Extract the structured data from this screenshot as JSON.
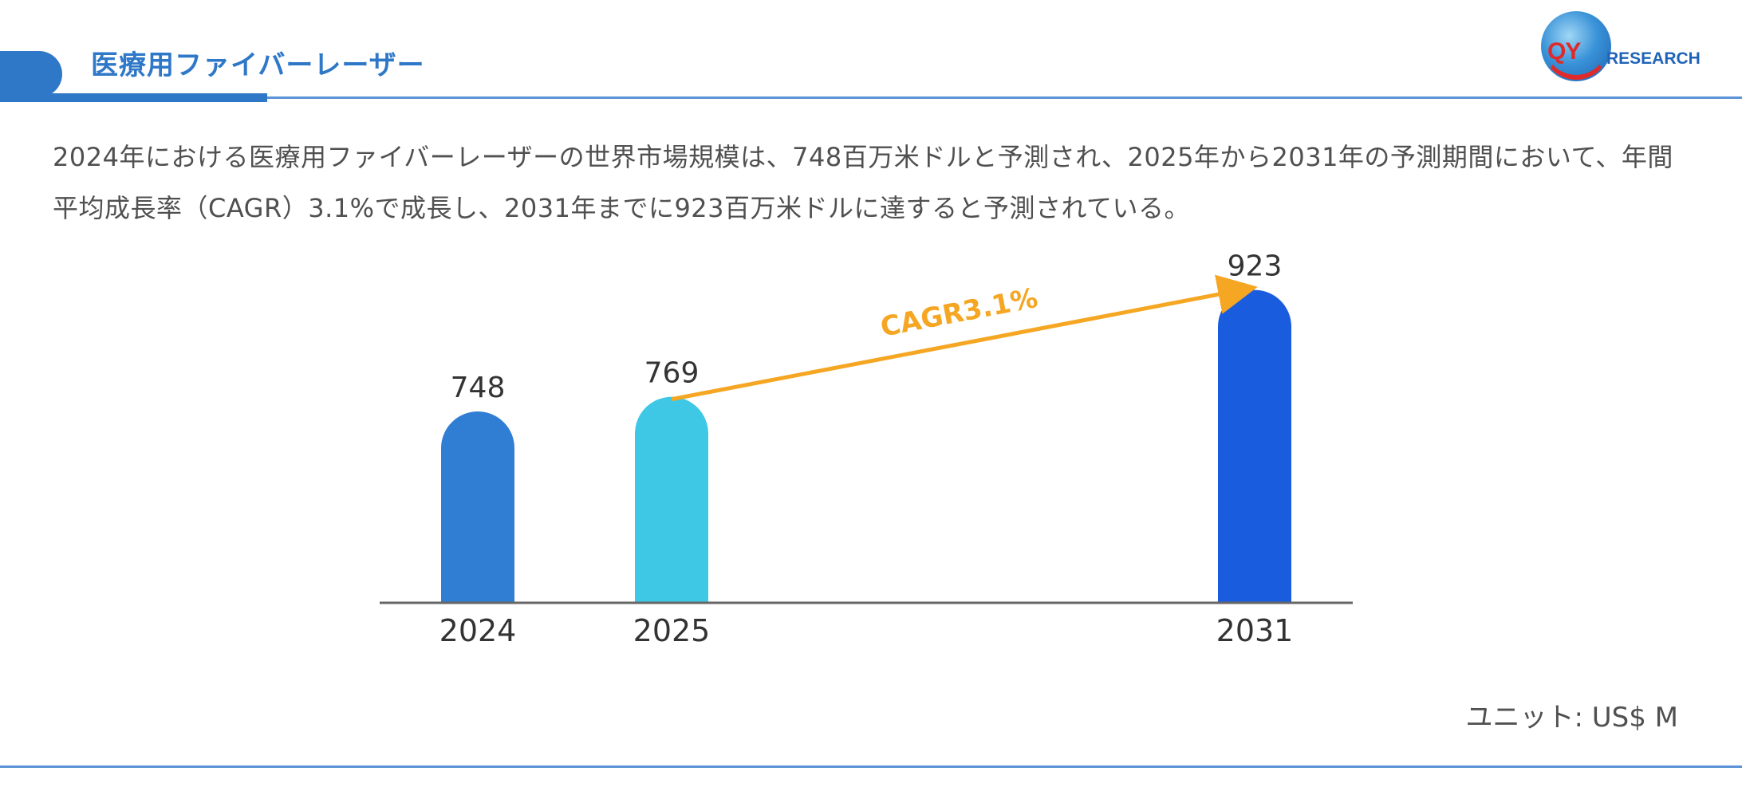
{
  "header": {
    "title": "医療用ファイバーレーザー"
  },
  "logo": {
    "brand_qy": "QY",
    "brand_research": "RESEARCH"
  },
  "description": "2024年における医療用ファイバーレーザーの世界市場規模は、748百万米ドルと予測され、2025年から2031年の予測期間において、年間平均成長率（CAGR）3.1%で成長し、2031年までに923百万米ドルに達すると予測されている。",
  "colors": {
    "accent": "#2f78c8",
    "arrow": "#f5a623"
  },
  "chart_data": {
    "type": "bar",
    "categories": [
      "2024",
      "2025",
      "2031"
    ],
    "values": [
      748,
      769,
      923
    ],
    "bar_colors": [
      "#2f7ed3",
      "#3ec8e6",
      "#1a5cde"
    ],
    "annotation": {
      "text": "CAGR3.1%",
      "from": "2025",
      "to": "2031"
    },
    "unit": "ユニット: US$ M",
    "grid": false
  }
}
